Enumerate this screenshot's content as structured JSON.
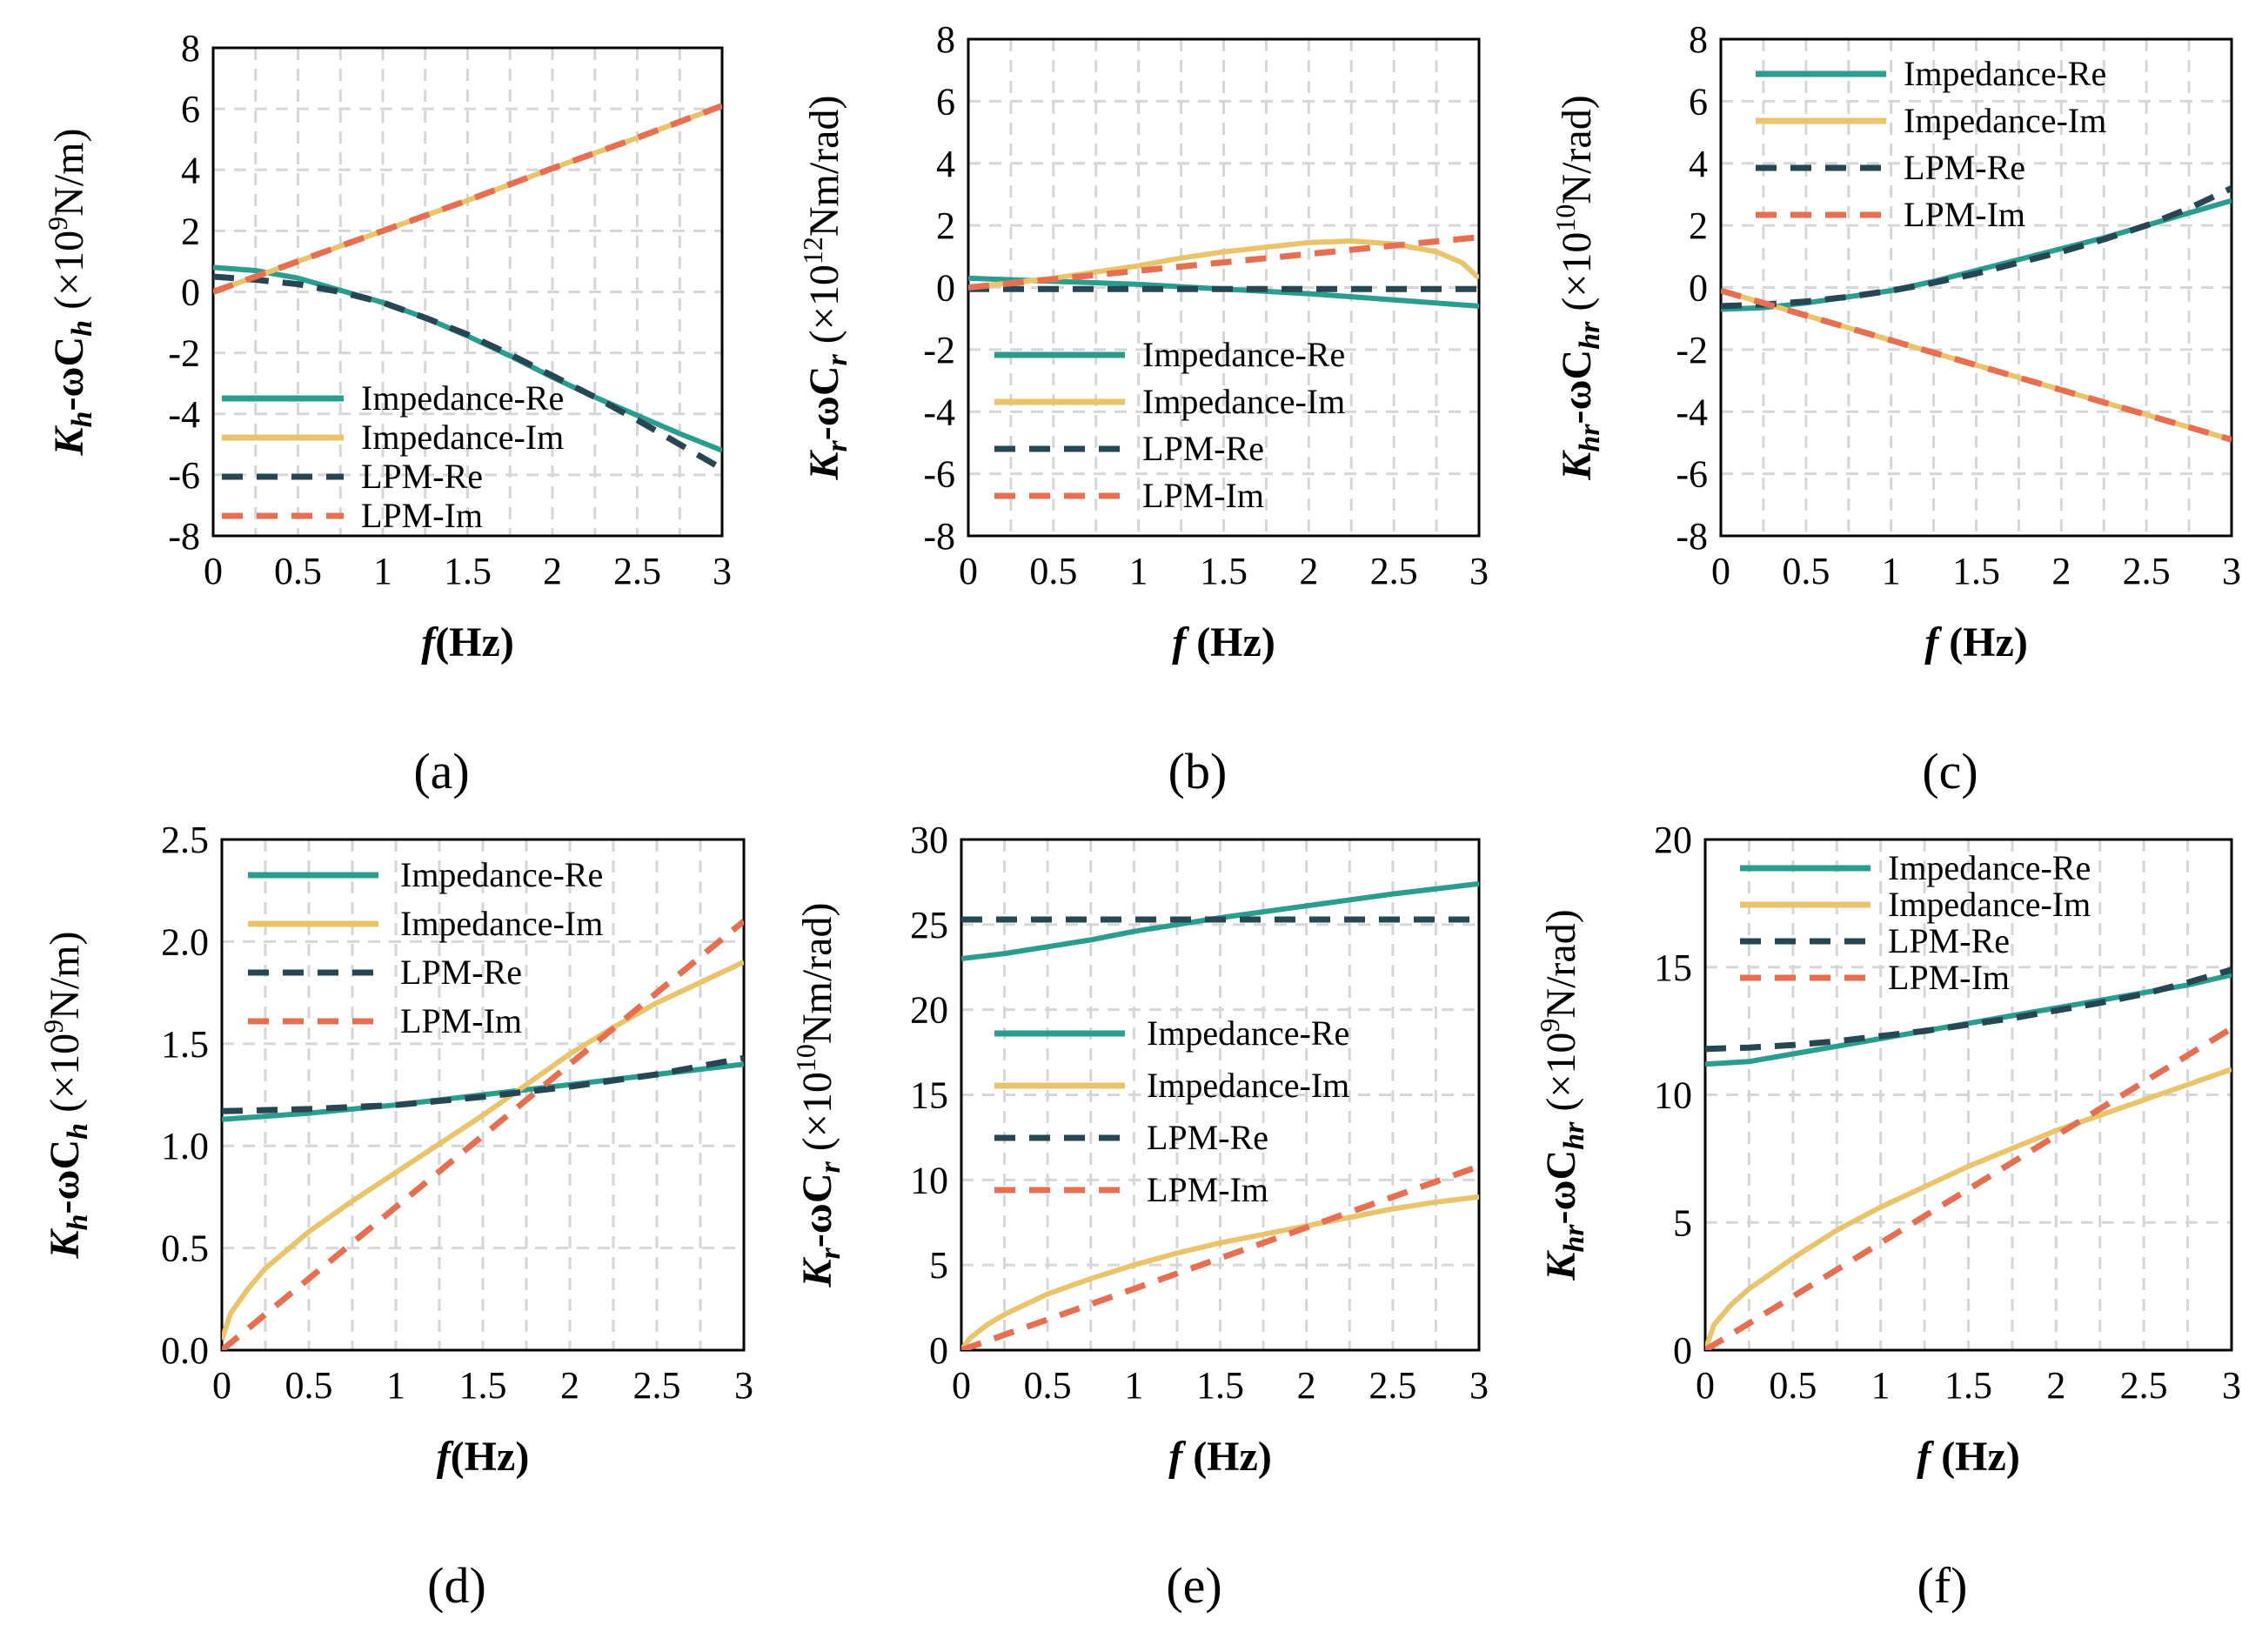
{
  "colors": {
    "impedance_re": "#2a9d8f",
    "impedance_im": "#e9c46a",
    "lpm_re": "#264653",
    "lpm_im": "#e76f51",
    "grid": "#d6d6d6"
  },
  "legend_labels": [
    "Impedance-Re",
    "Impedance-Im",
    "LPM-Re",
    "LPM-Im"
  ],
  "chart_data": [
    {
      "id": "a",
      "type": "line",
      "panel_label": "(a)",
      "title": "",
      "xlabel": {
        "symbol": "f",
        "unit": "(Hz)"
      },
      "ylabel": {
        "k": "K",
        "ksub": "h",
        "mid": "-ωC",
        "csub": "h",
        "scale": " (×10",
        "exp": "9",
        "unit": "N/m)"
      },
      "xlim": [
        0,
        3
      ],
      "ylim": [
        -8,
        8
      ],
      "xticks": [
        "0",
        "0.5",
        "1",
        "1.5",
        "2",
        "2.5",
        "3"
      ],
      "yticks": [
        "-8",
        "-6",
        "-4",
        "-2",
        "0",
        "2",
        "4",
        "6",
        "8"
      ],
      "legend_position": "bottom-left",
      "grid": true,
      "series": [
        {
          "name": "Impedance-Re",
          "style": "solid",
          "x": [
            0,
            0.25,
            0.5,
            0.75,
            1,
            1.25,
            1.5,
            1.75,
            2,
            2.25,
            2.5,
            2.75,
            3
          ],
          "y": [
            0.8,
            0.7,
            0.45,
            0.05,
            -0.35,
            -0.85,
            -1.45,
            -2.1,
            -2.8,
            -3.45,
            -4.05,
            -4.65,
            -5.2
          ]
        },
        {
          "name": "Impedance-Im",
          "style": "solid",
          "x": [
            0,
            0.5,
            1,
            1.5,
            2,
            2.5,
            3
          ],
          "y": [
            0,
            1.0,
            2.0,
            3.0,
            4.05,
            5.05,
            6.1
          ]
        },
        {
          "name": "LPM-Re",
          "style": "dashed",
          "x": [
            0,
            0.25,
            0.5,
            0.75,
            1,
            1.25,
            1.5,
            1.75,
            2,
            2.25,
            2.5,
            2.75,
            3
          ],
          "y": [
            0.5,
            0.4,
            0.25,
            0.0,
            -0.35,
            -0.85,
            -1.4,
            -2.05,
            -2.75,
            -3.45,
            -4.2,
            -5.0,
            -5.8
          ]
        },
        {
          "name": "LPM-Im",
          "style": "dashed",
          "x": [
            0,
            0.5,
            1,
            1.5,
            2,
            2.5,
            3
          ],
          "y": [
            0,
            1.0,
            2.0,
            3.0,
            4.05,
            5.05,
            6.1
          ]
        }
      ]
    },
    {
      "id": "b",
      "type": "line",
      "panel_label": "(b)",
      "title": "",
      "xlabel": {
        "symbol": "f",
        "unit": " (Hz)"
      },
      "ylabel": {
        "k": "K",
        "ksub": "r",
        "mid": "-ωC",
        "csub": "r",
        "scale": " (×10",
        "exp": "12",
        "unit": "Nm/rad)"
      },
      "xlim": [
        0,
        3
      ],
      "ylim": [
        -8,
        8
      ],
      "xticks": [
        "0",
        "0.5",
        "1",
        "1.5",
        "2",
        "2.5",
        "3"
      ],
      "yticks": [
        "-8",
        "-6",
        "-4",
        "-2",
        "0",
        "2",
        "4",
        "6",
        "8"
      ],
      "legend_position": "bottom-left",
      "grid": true,
      "series": [
        {
          "name": "Impedance-Re",
          "style": "solid",
          "x": [
            0,
            0.5,
            1,
            1.5,
            2,
            2.5,
            3
          ],
          "y": [
            0.3,
            0.2,
            0.1,
            -0.05,
            -0.2,
            -0.4,
            -0.6
          ]
        },
        {
          "name": "Impedance-Im",
          "style": "solid",
          "x": [
            0,
            0.25,
            0.5,
            0.75,
            1,
            1.25,
            1.5,
            1.75,
            2,
            2.25,
            2.5,
            2.75,
            2.9,
            3
          ],
          "y": [
            0,
            0.15,
            0.3,
            0.5,
            0.7,
            0.95,
            1.15,
            1.3,
            1.45,
            1.5,
            1.4,
            1.15,
            0.8,
            0.3
          ]
        },
        {
          "name": "LPM-Re",
          "style": "dashed",
          "x": [
            0,
            0.5,
            1,
            1.5,
            2,
            2.5,
            3
          ],
          "y": [
            -0.05,
            -0.05,
            -0.05,
            -0.05,
            -0.05,
            -0.05,
            -0.05
          ]
        },
        {
          "name": "LPM-Im",
          "style": "dashed",
          "x": [
            0,
            0.5,
            1,
            1.5,
            2,
            2.5,
            3
          ],
          "y": [
            0,
            0.27,
            0.54,
            0.81,
            1.08,
            1.35,
            1.62
          ]
        }
      ]
    },
    {
      "id": "c",
      "type": "line",
      "panel_label": "(c)",
      "title": "",
      "xlabel": {
        "symbol": "f",
        "unit": " (Hz)"
      },
      "ylabel": {
        "k": "K",
        "ksub": "hr",
        "mid": "-ωC",
        "csub": "hr",
        "scale": " (×10",
        "exp": "10",
        "unit": "N/rad)"
      },
      "xlim": [
        0,
        3
      ],
      "ylim": [
        -8,
        8
      ],
      "xticks": [
        "0",
        "0.5",
        "1",
        "1.5",
        "2",
        "2.5",
        "3"
      ],
      "yticks": [
        "-8",
        "-6",
        "-4",
        "-2",
        "0",
        "2",
        "4",
        "6",
        "8"
      ],
      "legend_position": "top-left",
      "grid": true,
      "series": [
        {
          "name": "Impedance-Re",
          "style": "solid",
          "x": [
            0,
            0.25,
            0.5,
            0.75,
            1,
            1.25,
            1.5,
            1.75,
            2,
            2.25,
            2.5,
            2.75,
            3
          ],
          "y": [
            -0.7,
            -0.65,
            -0.5,
            -0.3,
            -0.1,
            0.2,
            0.55,
            0.9,
            1.25,
            1.6,
            2.0,
            2.4,
            2.8
          ]
        },
        {
          "name": "Impedance-Im",
          "style": "solid",
          "x": [
            0,
            0.5,
            1,
            1.5,
            2,
            2.5,
            3
          ],
          "y": [
            -0.1,
            -0.9,
            -1.7,
            -2.5,
            -3.3,
            -4.1,
            -4.9
          ]
        },
        {
          "name": "LPM-Re",
          "style": "dashed",
          "x": [
            0,
            0.25,
            0.5,
            0.75,
            1,
            1.25,
            1.5,
            1.75,
            2,
            2.25,
            2.5,
            2.75,
            3
          ],
          "y": [
            -0.6,
            -0.55,
            -0.45,
            -0.3,
            -0.1,
            0.15,
            0.45,
            0.8,
            1.15,
            1.55,
            2.0,
            2.55,
            3.2
          ]
        },
        {
          "name": "LPM-Im",
          "style": "dashed",
          "x": [
            0,
            0.5,
            1,
            1.5,
            2,
            2.5,
            3
          ],
          "y": [
            -0.1,
            -0.9,
            -1.7,
            -2.5,
            -3.3,
            -4.1,
            -4.9
          ]
        }
      ]
    },
    {
      "id": "d",
      "type": "line",
      "panel_label": "(d)",
      "title": "",
      "xlabel": {
        "symbol": "f",
        "unit": "(Hz)"
      },
      "ylabel": {
        "k": "K",
        "ksub": "h",
        "mid": "-ωC",
        "csub": "h",
        "scale": " (×10",
        "exp": "9",
        "unit": "N/m)"
      },
      "xlim": [
        0,
        3
      ],
      "ylim": [
        0,
        2.5
      ],
      "xticks": [
        "0",
        "0.5",
        "1",
        "1.5",
        "2",
        "2.5",
        "3"
      ],
      "yticks": [
        "0.0",
        "0.5",
        "1.0",
        "1.5",
        "2.0",
        "2.5"
      ],
      "legend_position": "top-left",
      "grid": true,
      "series": [
        {
          "name": "Impedance-Re",
          "style": "solid",
          "x": [
            0,
            0.5,
            1,
            1.5,
            2,
            2.5,
            3
          ],
          "y": [
            1.13,
            1.16,
            1.2,
            1.25,
            1.3,
            1.35,
            1.4
          ]
        },
        {
          "name": "Impedance-Im",
          "style": "solid",
          "x": [
            0,
            0.05,
            0.15,
            0.25,
            0.5,
            0.75,
            1,
            1.25,
            1.5,
            1.75,
            2,
            2.25,
            2.5,
            2.75,
            3
          ],
          "y": [
            0.05,
            0.18,
            0.3,
            0.4,
            0.58,
            0.73,
            0.87,
            1.01,
            1.15,
            1.3,
            1.45,
            1.58,
            1.7,
            1.8,
            1.9
          ]
        },
        {
          "name": "LPM-Re",
          "style": "dashed",
          "x": [
            0,
            0.5,
            1,
            1.5,
            2,
            2.5,
            3
          ],
          "y": [
            1.17,
            1.18,
            1.2,
            1.24,
            1.29,
            1.35,
            1.43
          ]
        },
        {
          "name": "LPM-Im",
          "style": "dashed",
          "x": [
            0,
            0.5,
            1,
            1.5,
            2,
            2.5,
            3
          ],
          "y": [
            0,
            0.35,
            0.7,
            1.05,
            1.4,
            1.75,
            2.1
          ]
        }
      ]
    },
    {
      "id": "e",
      "type": "line",
      "panel_label": "(e)",
      "title": "",
      "xlabel": {
        "symbol": "f",
        "unit": " (Hz)"
      },
      "ylabel": {
        "k": "K",
        "ksub": "r",
        "mid": "-ωC",
        "csub": "r",
        "scale": " (×10",
        "exp": "10",
        "unit": "Nm/rad)"
      },
      "xlim": [
        0,
        3
      ],
      "ylim": [
        0,
        30
      ],
      "xticks": [
        "0",
        "0.5",
        "1",
        "1.5",
        "2",
        "2.5",
        "3"
      ],
      "yticks": [
        "0",
        "5",
        "10",
        "15",
        "20",
        "25",
        "30"
      ],
      "legend_position": "center-left",
      "grid": true,
      "series": [
        {
          "name": "Impedance-Re",
          "style": "solid",
          "x": [
            0,
            0.25,
            0.5,
            0.75,
            1,
            1.5,
            2,
            2.5,
            3
          ],
          "y": [
            23.0,
            23.3,
            23.7,
            24.1,
            24.6,
            25.4,
            26.1,
            26.8,
            27.4
          ]
        },
        {
          "name": "Impedance-Im",
          "style": "solid",
          "x": [
            0,
            0.05,
            0.15,
            0.25,
            0.5,
            0.75,
            1,
            1.25,
            1.5,
            1.75,
            2,
            2.25,
            2.5,
            2.75,
            3
          ],
          "y": [
            0,
            0.7,
            1.5,
            2.1,
            3.3,
            4.2,
            5.0,
            5.7,
            6.3,
            6.8,
            7.3,
            7.8,
            8.3,
            8.7,
            9.0
          ]
        },
        {
          "name": "LPM-Re",
          "style": "dashed",
          "x": [
            0,
            0.5,
            1,
            1.5,
            2,
            2.5,
            3
          ],
          "y": [
            25.3,
            25.3,
            25.3,
            25.3,
            25.3,
            25.3,
            25.3
          ]
        },
        {
          "name": "LPM-Im",
          "style": "dashed",
          "x": [
            0,
            0.5,
            1,
            1.5,
            2,
            2.5,
            3
          ],
          "y": [
            0,
            1.8,
            3.6,
            5.4,
            7.2,
            9.0,
            10.8
          ]
        }
      ]
    },
    {
      "id": "f",
      "type": "line",
      "panel_label": "(f)",
      "title": "",
      "xlabel": {
        "symbol": "f",
        "unit": " (Hz)"
      },
      "ylabel": {
        "k": "K",
        "ksub": "hr",
        "mid": "-ωC",
        "csub": "hr",
        "scale": " (×10",
        "exp": "9",
        "unit": "N/rad)"
      },
      "xlim": [
        0,
        3
      ],
      "ylim": [
        0,
        20
      ],
      "xticks": [
        "0",
        "0.5",
        "1",
        "1.5",
        "2",
        "2.5",
        "3"
      ],
      "yticks": [
        "0",
        "5",
        "10",
        "15",
        "20"
      ],
      "legend_position": "top-left",
      "grid": true,
      "series": [
        {
          "name": "Impedance-Re",
          "style": "solid",
          "x": [
            0,
            0.25,
            0.5,
            0.75,
            1,
            1.25,
            1.5,
            1.75,
            2,
            2.25,
            2.5,
            2.75,
            3
          ],
          "y": [
            11.2,
            11.3,
            11.6,
            11.9,
            12.2,
            12.5,
            12.8,
            13.1,
            13.4,
            13.7,
            14.0,
            14.3,
            14.7
          ]
        },
        {
          "name": "Impedance-Im",
          "style": "solid",
          "x": [
            0,
            0.05,
            0.15,
            0.25,
            0.5,
            0.75,
            1,
            1.25,
            1.5,
            1.75,
            2,
            2.25,
            2.5,
            2.75,
            3
          ],
          "y": [
            0,
            1.0,
            1.8,
            2.4,
            3.6,
            4.7,
            5.6,
            6.4,
            7.2,
            7.9,
            8.6,
            9.2,
            9.8,
            10.4,
            11.0
          ]
        },
        {
          "name": "LPM-Re",
          "style": "dashed",
          "x": [
            0,
            0.25,
            0.5,
            0.75,
            1,
            1.25,
            1.5,
            1.75,
            2,
            2.25,
            2.5,
            2.75,
            3
          ],
          "y": [
            11.8,
            11.85,
            11.95,
            12.1,
            12.3,
            12.5,
            12.75,
            13.0,
            13.3,
            13.6,
            13.95,
            14.4,
            14.9
          ]
        },
        {
          "name": "LPM-Im",
          "style": "dashed",
          "x": [
            0,
            0.5,
            1,
            1.5,
            2,
            2.5,
            3
          ],
          "y": [
            0,
            2.1,
            4.2,
            6.3,
            8.4,
            10.5,
            12.6
          ]
        }
      ]
    }
  ]
}
